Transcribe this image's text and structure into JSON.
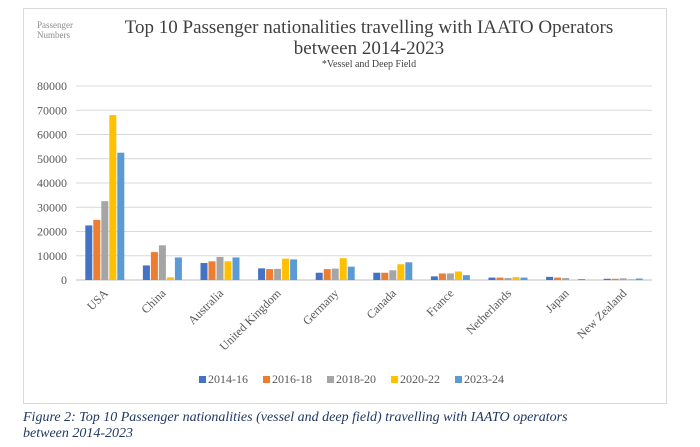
{
  "chart_data": {
    "type": "bar",
    "title_lines": [
      "Top 10 Passenger nationalities travelling with IAATO Operators",
      "between 2014-2023"
    ],
    "subtitle": "*Vessel and Deep Field",
    "ylabel_lines": [
      "Passenger",
      "Numbers"
    ],
    "xlabel": "",
    "ylim": [
      0,
      80000
    ],
    "yticks": [
      0,
      10000,
      20000,
      30000,
      40000,
      50000,
      60000,
      70000,
      80000
    ],
    "grid": true,
    "legend_position": "bottom",
    "categories": [
      "USA",
      "China",
      "Australia",
      "United Kingdom",
      "Germany",
      "Canada",
      "France",
      "Netherlands",
      "Japan",
      "New Zealand"
    ],
    "series": [
      {
        "name": "2014-16",
        "color": "#4472c4",
        "values": [
          22500,
          6000,
          7000,
          4800,
          3000,
          3000,
          1500,
          1000,
          1300,
          500
        ]
      },
      {
        "name": "2016-18",
        "color": "#ed7d31",
        "values": [
          24800,
          11500,
          7700,
          4500,
          4500,
          3000,
          2700,
          1000,
          1000,
          500
        ]
      },
      {
        "name": "2018-20",
        "color": "#a5a5a5",
        "values": [
          32500,
          14300,
          9500,
          4600,
          4700,
          4000,
          2700,
          800,
          800,
          700
        ]
      },
      {
        "name": "2020-22",
        "color": "#ffc000",
        "values": [
          68000,
          1100,
          7700,
          8800,
          9000,
          6500,
          3500,
          1200,
          100,
          400
        ]
      },
      {
        "name": "2023-24",
        "color": "#5b9bd5",
        "values": [
          52500,
          9300,
          9300,
          8500,
          5500,
          7300,
          2000,
          1000,
          400,
          600
        ]
      }
    ]
  },
  "caption": {
    "line1": "Figure 2: Top 10 Passenger nationalities (vessel and deep field) travelling with IAATO operators",
    "line2": "between 2014-2023"
  }
}
